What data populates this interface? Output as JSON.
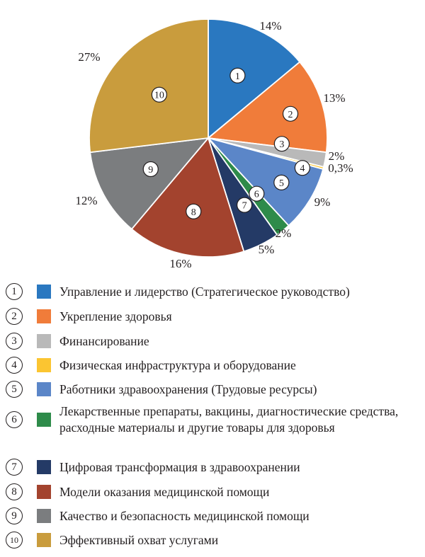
{
  "chart_data": {
    "type": "pie",
    "title": "",
    "start_angle_deg": 0,
    "direction": "clockwise",
    "slices": [
      {
        "num": "1",
        "value": 14,
        "label": "14%",
        "color": "#2a78c0",
        "legend": "Управление и лидерство (Стратегическое руководство)"
      },
      {
        "num": "2",
        "value": 13,
        "label": "13%",
        "color": "#f07c3a",
        "legend": "Укрепление здоровья"
      },
      {
        "num": "3",
        "value": 2,
        "label": "2%",
        "color": "#b9b9b9",
        "legend": "Финансирование"
      },
      {
        "num": "4",
        "value": 0.3,
        "label": "0,3%",
        "color": "#fbc531",
        "legend": "Физическая инфраструктура и оборудование"
      },
      {
        "num": "5",
        "value": 9,
        "label": "9%",
        "color": "#5b86c8",
        "legend": "Работники здравоохранения (Трудовые ресурсы)"
      },
      {
        "num": "6",
        "value": 2,
        "label": "2%",
        "color": "#2e8b4a",
        "legend": "Лекарственные препараты, вакцины, диагностические средства, расходные материалы и другие товары для здоровья"
      },
      {
        "num": "7",
        "value": 5,
        "label": "5%",
        "color": "#243a66",
        "legend": "Цифровая трансформация в здравоохранении"
      },
      {
        "num": "8",
        "value": 16,
        "label": "16%",
        "color": "#a3432e",
        "legend": "Модели оказания медицинской помощи"
      },
      {
        "num": "9",
        "value": 12,
        "label": "12%",
        "color": "#7b7d7f",
        "legend": "Качество и безопасность медицинской помощи"
      },
      {
        "num": "10",
        "value": 27,
        "label": "27%",
        "color": "#c99c3d",
        "legend": "Эффективный охват услугами"
      }
    ]
  }
}
